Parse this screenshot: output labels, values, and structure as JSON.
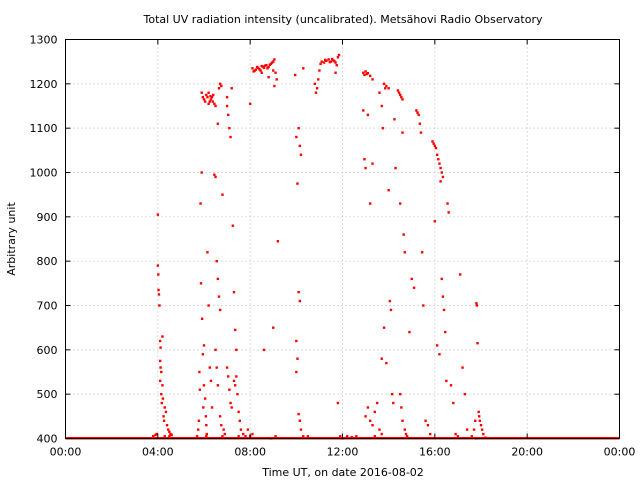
{
  "chart_data": {
    "type": "scatter",
    "title": "Total UV radiation intensity (uncalibrated). Metsähovi Radio Observatory",
    "xlabel": "Time UT, on date 2016-08-02",
    "ylabel": "Arbitrary unit",
    "x_unit": "hours UT",
    "xlim": [
      0,
      24
    ],
    "ylim": [
      400,
      1300
    ],
    "x_ticks": [
      0,
      4,
      8,
      12,
      16,
      20,
      24
    ],
    "x_tick_labels": [
      "00:00",
      "04:00",
      "08:00",
      "12:00",
      "16:00",
      "20:00",
      "00:00"
    ],
    "y_ticks": [
      400,
      500,
      600,
      700,
      800,
      900,
      1000,
      1100,
      1200,
      1300
    ],
    "y_tick_labels": [
      "400",
      "500",
      "600",
      "700",
      "800",
      "900",
      "1000",
      "1100",
      "1200",
      "1300"
    ],
    "grid": true,
    "marker_color": "#ff0000",
    "baseline": {
      "value": 400,
      "x_range": [
        0,
        24
      ]
    },
    "points": [
      [
        3.8,
        405
      ],
      [
        3.9,
        408
      ],
      [
        3.95,
        410
      ],
      [
        4.0,
        905
      ],
      [
        4.0,
        790
      ],
      [
        4.02,
        770
      ],
      [
        4.03,
        735
      ],
      [
        4.05,
        725
      ],
      [
        4.07,
        700
      ],
      [
        4.1,
        620
      ],
      [
        4.12,
        605
      ],
      [
        4.1,
        575
      ],
      [
        4.12,
        560
      ],
      [
        4.15,
        550
      ],
      [
        4.1,
        530
      ],
      [
        4.15,
        500
      ],
      [
        4.17,
        480
      ],
      [
        4.2,
        630
      ],
      [
        4.2,
        520
      ],
      [
        4.22,
        490
      ],
      [
        4.25,
        450
      ],
      [
        4.27,
        440
      ],
      [
        4.3,
        470
      ],
      [
        4.35,
        460
      ],
      [
        4.4,
        430
      ],
      [
        4.45,
        420
      ],
      [
        4.5,
        415
      ],
      [
        4.55,
        410
      ],
      [
        4.3,
        405
      ],
      [
        4.5,
        405
      ],
      [
        4.6,
        408
      ],
      [
        5.7,
        405
      ],
      [
        5.75,
        420
      ],
      [
        5.78,
        440
      ],
      [
        5.8,
        550
      ],
      [
        5.82,
        510
      ],
      [
        5.85,
        930
      ],
      [
        5.87,
        750
      ],
      [
        5.9,
        1000
      ],
      [
        5.92,
        670
      ],
      [
        5.95,
        590
      ],
      [
        5.97,
        470
      ],
      [
        6.0,
        610
      ],
      [
        6.0,
        520
      ],
      [
        6.05,
        490
      ],
      [
        6.08,
        450
      ],
      [
        6.1,
        430
      ],
      [
        6.12,
        410
      ],
      [
        6.15,
        820
      ],
      [
        6.2,
        700
      ],
      [
        6.25,
        560
      ],
      [
        6.3,
        530
      ],
      [
        6.35,
        470
      ],
      [
        6.1,
        405
      ],
      [
        5.9,
        1180
      ],
      [
        5.95,
        1170
      ],
      [
        6.0,
        1165
      ],
      [
        6.05,
        1160
      ],
      [
        6.1,
        1175
      ],
      [
        6.15,
        1170
      ],
      [
        6.2,
        1180
      ],
      [
        6.25,
        1160
      ],
      [
        6.3,
        1165
      ],
      [
        6.35,
        1170
      ],
      [
        6.4,
        1175
      ],
      [
        6.45,
        1155
      ],
      [
        6.5,
        1150
      ],
      [
        6.2,
        1155
      ],
      [
        6.28,
        1172
      ],
      [
        6.38,
        1160
      ],
      [
        6.45,
        995
      ],
      [
        6.5,
        990
      ],
      [
        6.55,
        800
      ],
      [
        6.6,
        760
      ],
      [
        6.65,
        720
      ],
      [
        6.7,
        690
      ],
      [
        6.6,
        1110
      ],
      [
        6.65,
        1190
      ],
      [
        6.7,
        1200
      ],
      [
        6.75,
        1195
      ],
      [
        6.8,
        950
      ],
      [
        6.5,
        600
      ],
      [
        6.55,
        560
      ],
      [
        6.6,
        520
      ],
      [
        6.7,
        450
      ],
      [
        6.75,
        430
      ],
      [
        6.8,
        405
      ],
      [
        6.85,
        420
      ],
      [
        6.9,
        410
      ],
      [
        7.0,
        1150
      ],
      [
        7.05,
        1130
      ],
      [
        7.1,
        1100
      ],
      [
        7.0,
        1170
      ],
      [
        7.15,
        1080
      ],
      [
        7.2,
        1190
      ],
      [
        7.25,
        880
      ],
      [
        7.3,
        730
      ],
      [
        7.35,
        645
      ],
      [
        7.4,
        600
      ],
      [
        7.0,
        560
      ],
      [
        7.05,
        540
      ],
      [
        7.1,
        510
      ],
      [
        7.15,
        480
      ],
      [
        7.2,
        470
      ],
      [
        7.3,
        530
      ],
      [
        7.35,
        520
      ],
      [
        7.4,
        540
      ],
      [
        7.45,
        500
      ],
      [
        7.5,
        460
      ],
      [
        7.55,
        440
      ],
      [
        7.6,
        420
      ],
      [
        7.7,
        410
      ],
      [
        7.8,
        405
      ],
      [
        7.9,
        420
      ],
      [
        8.0,
        405
      ],
      [
        8.1,
        410
      ],
      [
        7.5,
        405
      ],
      [
        8.0,
        1155
      ],
      [
        8.1,
        1235
      ],
      [
        8.2,
        1230
      ],
      [
        8.3,
        1238
      ],
      [
        8.4,
        1233
      ],
      [
        8.5,
        1240
      ],
      [
        8.6,
        1236
      ],
      [
        8.7,
        1242
      ],
      [
        8.8,
        1238
      ],
      [
        8.9,
        1245
      ],
      [
        9.0,
        1250
      ],
      [
        9.05,
        1255
      ],
      [
        8.15,
        1228
      ],
      [
        8.25,
        1232
      ],
      [
        8.35,
        1236
      ],
      [
        8.45,
        1230
      ],
      [
        8.55,
        1239
      ],
      [
        8.65,
        1241
      ],
      [
        8.75,
        1235
      ],
      [
        8.85,
        1243
      ],
      [
        8.95,
        1248
      ],
      [
        8.5,
        1225
      ],
      [
        8.8,
        1215
      ],
      [
        9.0,
        1230
      ],
      [
        9.1,
        1225
      ],
      [
        9.15,
        1210
      ],
      [
        9.05,
        1195
      ],
      [
        9.2,
        845
      ],
      [
        8.6,
        600
      ],
      [
        8.9,
        400
      ],
      [
        9.0,
        650
      ],
      [
        9.1,
        405
      ],
      [
        9.95,
        1220
      ],
      [
        10.0,
        1080
      ],
      [
        10.05,
        975
      ],
      [
        10.1,
        1100
      ],
      [
        10.15,
        1060
      ],
      [
        10.2,
        1040
      ],
      [
        10.1,
        730
      ],
      [
        10.15,
        710
      ],
      [
        10.0,
        620
      ],
      [
        10.05,
        580
      ],
      [
        10.0,
        550
      ],
      [
        10.1,
        455
      ],
      [
        10.15,
        440
      ],
      [
        10.2,
        420
      ],
      [
        10.3,
        1235
      ],
      [
        10.3,
        405
      ],
      [
        10.5,
        405
      ],
      [
        10.8,
        1200
      ],
      [
        10.85,
        1180
      ],
      [
        10.9,
        1190
      ],
      [
        10.95,
        1210
      ],
      [
        11.0,
        1230
      ],
      [
        11.05,
        1245
      ],
      [
        11.1,
        1250
      ],
      [
        11.2,
        1248
      ],
      [
        11.3,
        1252
      ],
      [
        11.4,
        1255
      ],
      [
        11.5,
        1250
      ],
      [
        11.6,
        1253
      ],
      [
        11.7,
        1248
      ],
      [
        11.75,
        1242
      ],
      [
        11.8,
        1260
      ],
      [
        11.85,
        1265
      ],
      [
        11.25,
        1254
      ],
      [
        11.45,
        1249
      ],
      [
        11.55,
        1256
      ],
      [
        11.65,
        1251
      ],
      [
        11.7,
        1225
      ],
      [
        11.8,
        480
      ],
      [
        11.9,
        405
      ],
      [
        12.0,
        400
      ],
      [
        12.2,
        405
      ],
      [
        12.4,
        403
      ],
      [
        12.6,
        405
      ],
      [
        12.9,
        1225
      ],
      [
        12.95,
        1220
      ],
      [
        13.0,
        1228
      ],
      [
        13.05,
        1222
      ],
      [
        13.1,
        1224
      ],
      [
        13.2,
        1218
      ],
      [
        13.3,
        1210
      ],
      [
        12.9,
        1140
      ],
      [
        12.95,
        1030
      ],
      [
        13.0,
        1010
      ],
      [
        13.1,
        1130
      ],
      [
        13.2,
        930
      ],
      [
        13.3,
        1020
      ],
      [
        13.0,
        450
      ],
      [
        13.1,
        470
      ],
      [
        13.2,
        440
      ],
      [
        13.3,
        430
      ],
      [
        13.4,
        460
      ],
      [
        13.5,
        480
      ],
      [
        13.6,
        420
      ],
      [
        13.7,
        410
      ],
      [
        13.4,
        405
      ],
      [
        13.6,
        1180
      ],
      [
        13.7,
        1150
      ],
      [
        13.75,
        1100
      ],
      [
        13.8,
        1200
      ],
      [
        13.85,
        1190
      ],
      [
        13.9,
        1195
      ],
      [
        14.0,
        1190
      ],
      [
        13.7,
        580
      ],
      [
        13.8,
        650
      ],
      [
        13.9,
        570
      ],
      [
        14.0,
        960
      ],
      [
        14.05,
        710
      ],
      [
        14.1,
        690
      ],
      [
        14.15,
        500
      ],
      [
        14.2,
        480
      ],
      [
        14.25,
        1120
      ],
      [
        14.3,
        1010
      ],
      [
        14.4,
        1185
      ],
      [
        14.45,
        1180
      ],
      [
        14.5,
        1175
      ],
      [
        14.55,
        1170
      ],
      [
        14.6,
        1165
      ],
      [
        14.5,
        930
      ],
      [
        14.6,
        1090
      ],
      [
        14.65,
        860
      ],
      [
        14.7,
        820
      ],
      [
        14.5,
        500
      ],
      [
        14.55,
        470
      ],
      [
        14.6,
        440
      ],
      [
        14.7,
        420
      ],
      [
        14.75,
        410
      ],
      [
        14.8,
        405
      ],
      [
        14.9,
        640
      ],
      [
        15.0,
        760
      ],
      [
        15.1,
        740
      ],
      [
        15.2,
        1140
      ],
      [
        15.25,
        1135
      ],
      [
        15.3,
        1130
      ],
      [
        15.35,
        1110
      ],
      [
        15.4,
        1090
      ],
      [
        15.45,
        820
      ],
      [
        15.5,
        700
      ],
      [
        15.6,
        440
      ],
      [
        15.7,
        430
      ],
      [
        15.8,
        410
      ],
      [
        15.9,
        1070
      ],
      [
        15.95,
        1065
      ],
      [
        16.0,
        1060
      ],
      [
        16.05,
        1055
      ],
      [
        16.1,
        1040
      ],
      [
        16.15,
        1030
      ],
      [
        16.2,
        1020
      ],
      [
        16.25,
        1010
      ],
      [
        16.3,
        1000
      ],
      [
        16.35,
        990
      ],
      [
        16.0,
        890
      ],
      [
        16.1,
        610
      ],
      [
        16.2,
        590
      ],
      [
        16.25,
        980
      ],
      [
        16.3,
        760
      ],
      [
        16.35,
        720
      ],
      [
        16.4,
        690
      ],
      [
        16.45,
        640
      ],
      [
        16.5,
        530
      ],
      [
        16.55,
        930
      ],
      [
        16.6,
        910
      ],
      [
        16.7,
        520
      ],
      [
        16.8,
        480
      ],
      [
        16.9,
        410
      ],
      [
        17.0,
        405
      ],
      [
        17.1,
        770
      ],
      [
        17.2,
        560
      ],
      [
        17.3,
        500
      ],
      [
        17.4,
        420
      ],
      [
        17.6,
        405
      ],
      [
        17.7,
        420
      ],
      [
        17.75,
        440
      ],
      [
        17.8,
        705
      ],
      [
        17.82,
        700
      ],
      [
        17.85,
        615
      ],
      [
        17.9,
        460
      ],
      [
        17.92,
        450
      ],
      [
        17.95,
        440
      ],
      [
        18.0,
        430
      ],
      [
        18.05,
        420
      ],
      [
        18.1,
        410
      ],
      [
        17.8,
        400
      ],
      [
        18.2,
        402
      ]
    ]
  }
}
